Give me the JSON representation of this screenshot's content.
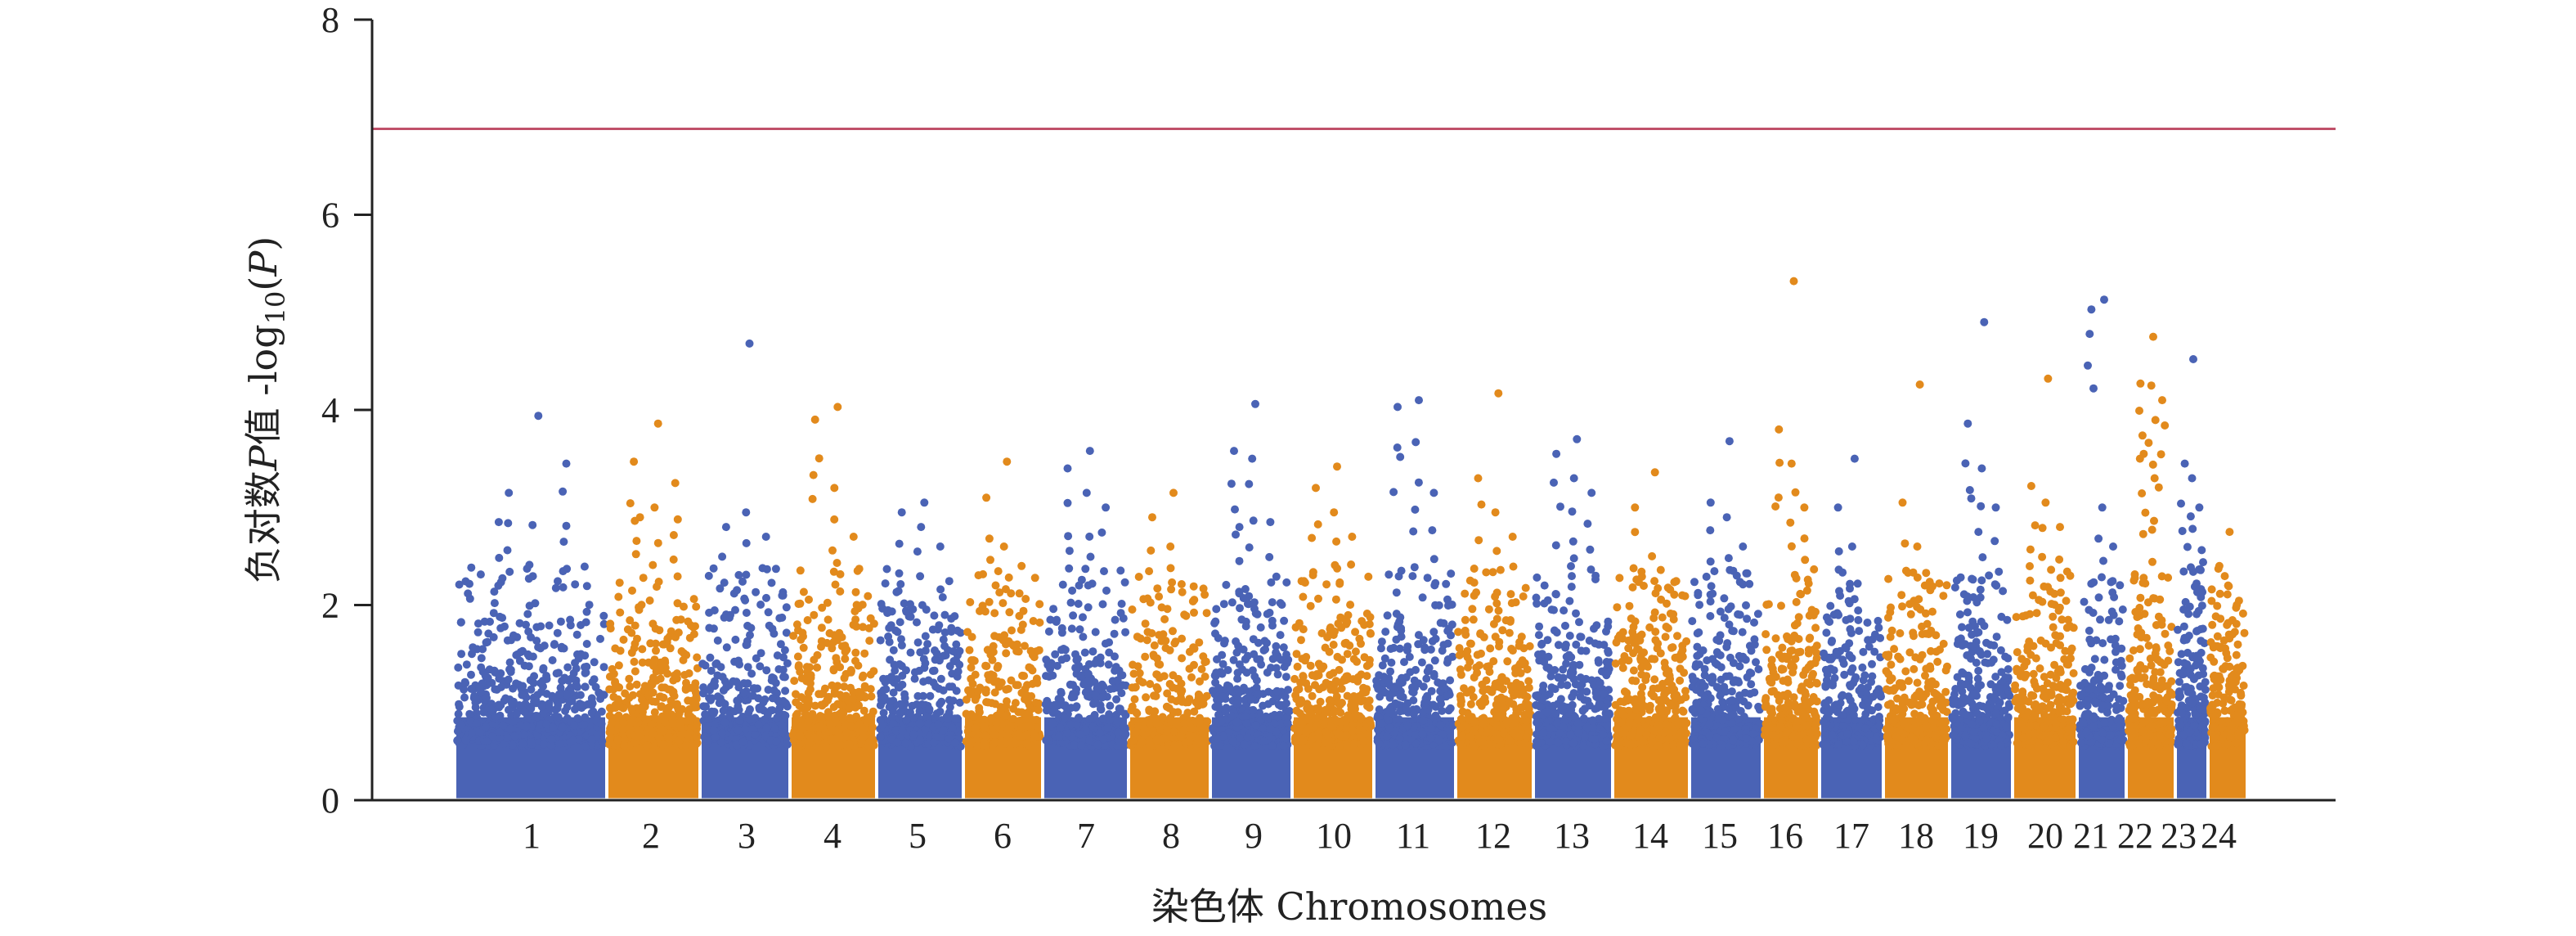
{
  "chart_data": {
    "type": "scatter",
    "subtype": "manhattan",
    "title": "",
    "xlabel": "染色体 Chromosomes",
    "ylabel_prefix": "负对数",
    "ylabel_p": "P",
    "ylabel_mid": "值 -log",
    "ylabel_sub": "10",
    "ylabel_open": "(",
    "ylabel_close": ")",
    "ylim": [
      0,
      8
    ],
    "yticks": [
      "0",
      "2",
      "4",
      "6",
      "8"
    ],
    "threshold": 6.88,
    "threshold_color": "#c0506a",
    "grid": false,
    "legend": "none",
    "colors": {
      "odd": "#4a63b5",
      "even": "#e28a1c"
    },
    "chromosomes": [
      {
        "label": "1",
        "peak": 3.94,
        "high": [
          2.85,
          2.82,
          3.45,
          3.15
        ]
      },
      {
        "label": "2",
        "peak": 3.86,
        "high": [
          3.47,
          3.0,
          3.25,
          2.9
        ]
      },
      {
        "label": "3",
        "peak": 4.68,
        "high": [
          2.8,
          2.95,
          2.7
        ]
      },
      {
        "label": "4",
        "peak": 4.03,
        "high": [
          3.9,
          3.2,
          2.7
        ]
      },
      {
        "label": "5",
        "peak": 3.05,
        "high": [
          2.95,
          2.8,
          2.6
        ]
      },
      {
        "label": "6",
        "peak": 3.47,
        "high": [
          3.1,
          2.6,
          2.4
        ]
      },
      {
        "label": "7",
        "peak": 3.58,
        "high": [
          3.4,
          3.15,
          3.0
        ]
      },
      {
        "label": "8",
        "peak": 3.15,
        "high": [
          2.9,
          2.6
        ]
      },
      {
        "label": "9",
        "peak": 4.06,
        "high": [
          3.58,
          3.5,
          2.85,
          2.8
        ]
      },
      {
        "label": "10",
        "peak": 3.42,
        "high": [
          3.2,
          2.95,
          2.7
        ]
      },
      {
        "label": "11",
        "peak": 4.1,
        "high": [
          4.03,
          3.67,
          3.15
        ]
      },
      {
        "label": "12",
        "peak": 4.17,
        "high": [
          3.3,
          2.95,
          2.7
        ]
      },
      {
        "label": "13",
        "peak": 3.7,
        "high": [
          3.55,
          3.3,
          3.15
        ]
      },
      {
        "label": "14",
        "peak": 3.36,
        "high": [
          3.0,
          2.5
        ]
      },
      {
        "label": "15",
        "peak": 3.68,
        "high": [
          3.05,
          2.9,
          2.6
        ]
      },
      {
        "label": "16",
        "peak": 5.32,
        "high": [
          3.8,
          3.45,
          3.0
        ]
      },
      {
        "label": "17",
        "peak": 3.5,
        "high": [
          3.0,
          2.6
        ]
      },
      {
        "label": "18",
        "peak": 4.26,
        "high": [
          3.05,
          2.6
        ]
      },
      {
        "label": "19",
        "peak": 4.9,
        "high": [
          3.86,
          3.4,
          3.0
        ]
      },
      {
        "label": "20",
        "peak": 4.32,
        "high": [
          3.22,
          3.05,
          2.8
        ]
      },
      {
        "label": "21",
        "peak": 5.13,
        "high": [
          5.03,
          3.0,
          2.6
        ]
      },
      {
        "label": "22",
        "peak": 4.75,
        "high": [
          4.27,
          4.25,
          4.1,
          3.55,
          3.3
        ]
      },
      {
        "label": "23",
        "peak": 4.52,
        "high": [
          3.45,
          3.3,
          3.0
        ]
      },
      {
        "label": "24",
        "peak": 2.75,
        "high": [
          2.4,
          2.2,
          2.0
        ]
      }
    ]
  }
}
